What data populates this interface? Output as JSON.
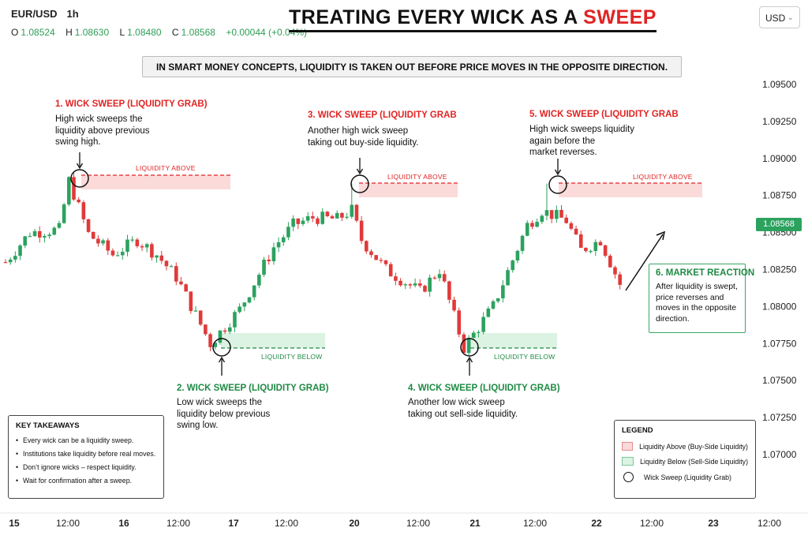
{
  "header": {
    "symbol": "EUR/USD",
    "timeframe": "1h",
    "ohlc": [
      {
        "key": "O",
        "value": "1.08524"
      },
      {
        "key": "H",
        "value": "1.08630"
      },
      {
        "key": "L",
        "value": "1.08480"
      },
      {
        "key": "C",
        "value": "1.08568"
      }
    ],
    "change": "+0.00044 (+0.04%)",
    "title_part1": "TREATING EVERY WICK AS A ",
    "title_part2": "SWEEP",
    "currency": "USD",
    "subtitle": "IN SMART MONEY CONCEPTS, LIQUIDITY IS TAKEN OUT BEFORE PRICE MOVES IN THE OPPOSITE DIRECTION."
  },
  "annotations": {
    "a1_title": "1. WICK SWEEP (LIQUIDITY GRAB)",
    "a1_lines": [
      "High wick sweeps the",
      "liquidity above previous",
      "swing high."
    ],
    "a2_title": "2. WICK SWEEP (LIQUIDITY GRAB)",
    "a2_lines": [
      "Low wick sweeps the",
      "liquidity below previous",
      "swing low."
    ],
    "a3_title": "3. WICK SWEEP (LIQUIDITY GRAB",
    "a3_lines": [
      "Another high wick sweep",
      "taking out buy-side liquidity."
    ],
    "a4_title": "4. WICK SWEEP (LIQUIDITY GRAB)",
    "a4_lines": [
      "Another low wick sweep",
      "taking out sell-side liquidity."
    ],
    "a5_title": "5. WICK SWEEP (LIQUIDITY GRAB",
    "a5_lines": [
      "High wick sweeps liquidity",
      "again before the",
      "market reverses."
    ],
    "a6_title": "6. MARKET REACTION",
    "a6_lines": [
      "After liquidity is swept,",
      "price reverses and",
      "moves in the opposite",
      "direction."
    ],
    "liquidity_above": "LIQUIDITY ABOVE",
    "liquidity_below": "LIQUIDITY BELOW"
  },
  "takeaways": {
    "title": "KEY TAKEAWAYS",
    "items": [
      "Every wick can be a liquidity sweep.",
      "Institutions take liquidity before real moves.",
      "Don’t ignore wicks – respect liquidity.",
      "Wait for confirmation after a sweep."
    ]
  },
  "legend": {
    "title": "LEGEND",
    "items": [
      {
        "label": "Liquidity Above (Buy-Side Liquidity)",
        "swatch": "red"
      },
      {
        "label": "Liquidity Below (Sell-Side Liquidity)",
        "swatch": "green"
      },
      {
        "label": "Wick Sweep (Liquidity Grab)",
        "swatch": "circle"
      }
    ]
  },
  "colors": {
    "bull": "#2ca25f",
    "bear": "#e03a3a",
    "accent_red": "#e02424",
    "accent_green": "#1e8a44",
    "zone_red": "#fbdada",
    "zone_green": "#dcf3e3"
  },
  "chart_data": {
    "type": "candlestick",
    "instrument": "EUR/USD",
    "interval": "1h",
    "last_price": "1.08568",
    "y_ticks": [
      "1.09500",
      "1.09250",
      "1.09000",
      "1.08750",
      "1.08500",
      "1.08250",
      "1.08000",
      "1.07750",
      "1.07500",
      "1.07250",
      "1.07000"
    ],
    "x_ticks": [
      {
        "label": "15",
        "bold": true
      },
      {
        "label": "12:00",
        "bold": false
      },
      {
        "label": "16",
        "bold": true
      },
      {
        "label": "12:00",
        "bold": false
      },
      {
        "label": "17",
        "bold": true
      },
      {
        "label": "12:00",
        "bold": false
      },
      {
        "label": "20",
        "bold": true
      },
      {
        "label": "12:00",
        "bold": false
      },
      {
        "label": "21",
        "bold": true
      },
      {
        "label": "12:00",
        "bold": false
      },
      {
        "label": "22",
        "bold": true
      },
      {
        "label": "12:00",
        "bold": false
      },
      {
        "label": "23",
        "bold": true
      },
      {
        "label": "12:00",
        "bold": false
      }
    ],
    "ylim": [
      1.0695,
      1.0955
    ],
    "liquidity_above_levels": [
      1.0887,
      1.0882,
      1.0882
    ],
    "liquidity_below_levels": [
      1.0772,
      1.0772
    ],
    "path_points": [
      [
        0,
        1.083
      ],
      [
        5,
        1.085
      ],
      [
        11,
        1.0852
      ],
      [
        13,
        1.0885
      ],
      [
        17,
        1.0849
      ],
      [
        22,
        1.0835
      ],
      [
        27,
        1.0845
      ],
      [
        31,
        1.0835
      ],
      [
        35,
        1.082
      ],
      [
        42,
        1.0775
      ],
      [
        48,
        1.0798
      ],
      [
        55,
        1.084
      ],
      [
        59,
        1.0855
      ],
      [
        63,
        1.086
      ],
      [
        68,
        1.0859
      ],
      [
        71,
        1.0865
      ],
      [
        73,
        1.0845
      ],
      [
        78,
        1.0825
      ],
      [
        85,
        1.081
      ],
      [
        89,
        1.0825
      ],
      [
        94,
        1.0772
      ],
      [
        100,
        1.08
      ],
      [
        107,
        1.0855
      ],
      [
        110,
        1.0865
      ],
      [
        115,
        1.0858
      ],
      [
        118,
        1.0838
      ],
      [
        122,
        1.0845
      ],
      [
        126,
        1.0815
      ]
    ],
    "sweep_points": [
      {
        "index": 13,
        "type": "high",
        "price": 1.0887
      },
      {
        "index": 43,
        "type": "low",
        "price": 1.0772
      },
      {
        "index": 71,
        "type": "high",
        "price": 1.0882
      },
      {
        "index": 94,
        "type": "low",
        "price": 1.0772
      },
      {
        "index": 111,
        "type": "high",
        "price": 1.0882
      }
    ]
  }
}
